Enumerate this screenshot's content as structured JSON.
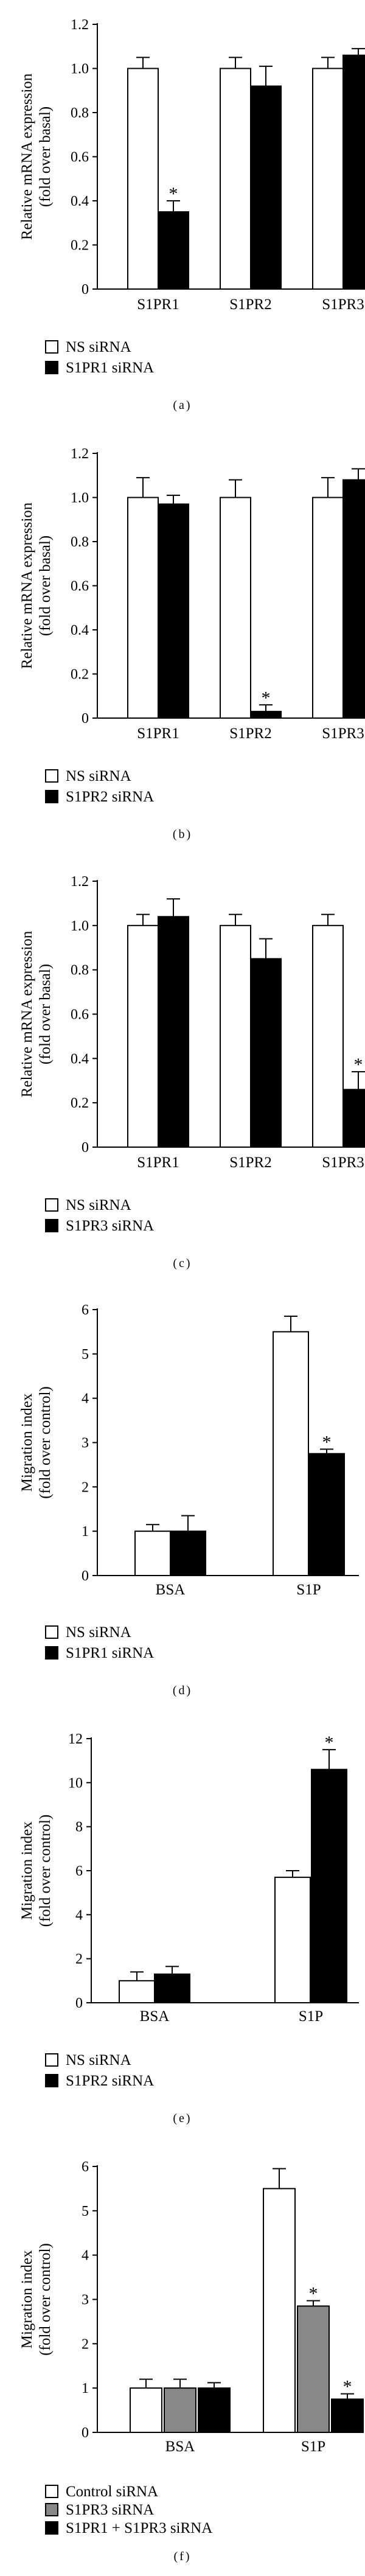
{
  "chart_data": [
    {
      "panel": "(a)",
      "type": "bar",
      "ylabel": [
        "Relative mRNA expression",
        "(fold over basal)"
      ],
      "ylim": [
        0,
        1.2
      ],
      "yticks": [
        "0",
        "0.2",
        "0.4",
        "0.6",
        "0.8",
        "1.0",
        "1.2"
      ],
      "ytick_values": [
        0,
        0.2,
        0.4,
        0.6,
        0.8,
        1.0,
        1.2
      ],
      "categories": [
        "S1PR1",
        "S1PR2",
        "S1PR3"
      ],
      "series": [
        {
          "name": "NS siRNA",
          "fill": "#ffffff",
          "values": [
            1.0,
            1.0,
            1.0
          ],
          "errors": [
            0.05,
            0.05,
            0.05
          ],
          "stars": [
            false,
            false,
            false
          ]
        },
        {
          "name": "S1PR1 siRNA",
          "fill": "#000000",
          "values": [
            0.35,
            0.92,
            1.06
          ],
          "errors": [
            0.05,
            0.09,
            0.03
          ],
          "stars": [
            true,
            false,
            false
          ]
        }
      ]
    },
    {
      "panel": "(b)",
      "type": "bar",
      "ylabel": [
        "Relative mRNA expression",
        "(fold over basal)"
      ],
      "ylim": [
        0,
        1.2
      ],
      "yticks": [
        "0",
        "0.2",
        "0.4",
        "0.6",
        "0.8",
        "1.0",
        "1.2"
      ],
      "ytick_values": [
        0,
        0.2,
        0.4,
        0.6,
        0.8,
        1.0,
        1.2
      ],
      "categories": [
        "S1PR1",
        "S1PR2",
        "S1PR3"
      ],
      "series": [
        {
          "name": "NS siRNA",
          "fill": "#ffffff",
          "values": [
            1.0,
            1.0,
            1.0
          ],
          "errors": [
            0.09,
            0.08,
            0.09
          ],
          "stars": [
            false,
            false,
            false
          ]
        },
        {
          "name": "S1PR2 siRNA",
          "fill": "#000000",
          "values": [
            0.97,
            0.03,
            1.08
          ],
          "errors": [
            0.04,
            0.03,
            0.05
          ],
          "stars": [
            false,
            true,
            false
          ]
        }
      ]
    },
    {
      "panel": "(c)",
      "type": "bar",
      "ylabel": [
        "Relative mRNA expression",
        "(fold over basal)"
      ],
      "ylim": [
        0,
        1.2
      ],
      "yticks": [
        "0",
        "0.2",
        "0.4",
        "0.6",
        "0.8",
        "1.0",
        "1.2"
      ],
      "ytick_values": [
        0,
        0.2,
        0.4,
        0.6,
        0.8,
        1.0,
        1.2
      ],
      "categories": [
        "S1PR1",
        "S1PR2",
        "S1PR3"
      ],
      "series": [
        {
          "name": "NS siRNA",
          "fill": "#ffffff",
          "values": [
            1.0,
            1.0,
            1.0
          ],
          "errors": [
            0.05,
            0.05,
            0.05
          ],
          "stars": [
            false,
            false,
            false
          ]
        },
        {
          "name": "S1PR3 siRNA",
          "fill": "#000000",
          "values": [
            1.04,
            0.85,
            0.26
          ],
          "errors": [
            0.08,
            0.09,
            0.08
          ],
          "stars": [
            false,
            false,
            true
          ]
        }
      ]
    },
    {
      "panel": "(d)",
      "type": "bar",
      "ylabel": [
        "Migration index",
        "(fold over control)"
      ],
      "ylim": [
        0,
        6
      ],
      "yticks": [
        "0",
        "1",
        "2",
        "3",
        "4",
        "5",
        "6"
      ],
      "ytick_values": [
        0,
        1,
        2,
        3,
        4,
        5,
        6
      ],
      "categories": [
        "BSA",
        "S1P"
      ],
      "series": [
        {
          "name": "NS siRNA",
          "fill": "#ffffff",
          "values": [
            1.0,
            5.5
          ],
          "errors": [
            0.15,
            0.35
          ],
          "stars": [
            false,
            false
          ]
        },
        {
          "name": "S1PR1 siRNA",
          "fill": "#000000",
          "values": [
            1.0,
            2.75
          ],
          "errors": [
            0.35,
            0.1
          ],
          "stars": [
            false,
            true
          ]
        }
      ]
    },
    {
      "panel": "(e)",
      "type": "bar",
      "ylabel": [
        "Migration index",
        "(fold over control)"
      ],
      "ylim": [
        0,
        12
      ],
      "yticks": [
        "0",
        "2",
        "4",
        "6",
        "8",
        "10",
        "12"
      ],
      "ytick_values": [
        0,
        2,
        4,
        6,
        8,
        10,
        12
      ],
      "categories": [
        "BSA",
        "S1P"
      ],
      "series": [
        {
          "name": "NS siRNA",
          "fill": "#ffffff",
          "values": [
            1.0,
            5.7
          ],
          "errors": [
            0.4,
            0.3
          ],
          "stars": [
            false,
            false
          ]
        },
        {
          "name": "S1PR2 siRNA",
          "fill": "#000000",
          "values": [
            1.3,
            10.6
          ],
          "errors": [
            0.35,
            0.9
          ],
          "stars": [
            false,
            true
          ]
        }
      ]
    },
    {
      "panel": "(f)",
      "type": "bar",
      "ylabel": [
        "Migration index",
        "(fold over control)"
      ],
      "ylim": [
        0,
        6
      ],
      "yticks": [
        "0",
        "1",
        "2",
        "3",
        "4",
        "5",
        "6"
      ],
      "ytick_values": [
        0,
        1,
        2,
        3,
        4,
        5,
        6
      ],
      "categories": [
        "BSA",
        "S1P"
      ],
      "series": [
        {
          "name": "Control siRNA",
          "fill": "#ffffff",
          "values": [
            1.0,
            5.5
          ],
          "errors": [
            0.2,
            0.45
          ],
          "stars": [
            false,
            false
          ]
        },
        {
          "name": "S1PR3 siRNA",
          "fill": "#888888",
          "values": [
            1.0,
            2.85
          ],
          "errors": [
            0.2,
            0.12
          ],
          "stars": [
            false,
            true
          ]
        },
        {
          "name": "S1PR1 + S1PR3 siRNA",
          "fill": "#000000",
          "values": [
            1.0,
            0.75
          ],
          "errors": [
            0.12,
            0.12
          ],
          "stars": [
            false,
            true
          ]
        }
      ]
    }
  ]
}
